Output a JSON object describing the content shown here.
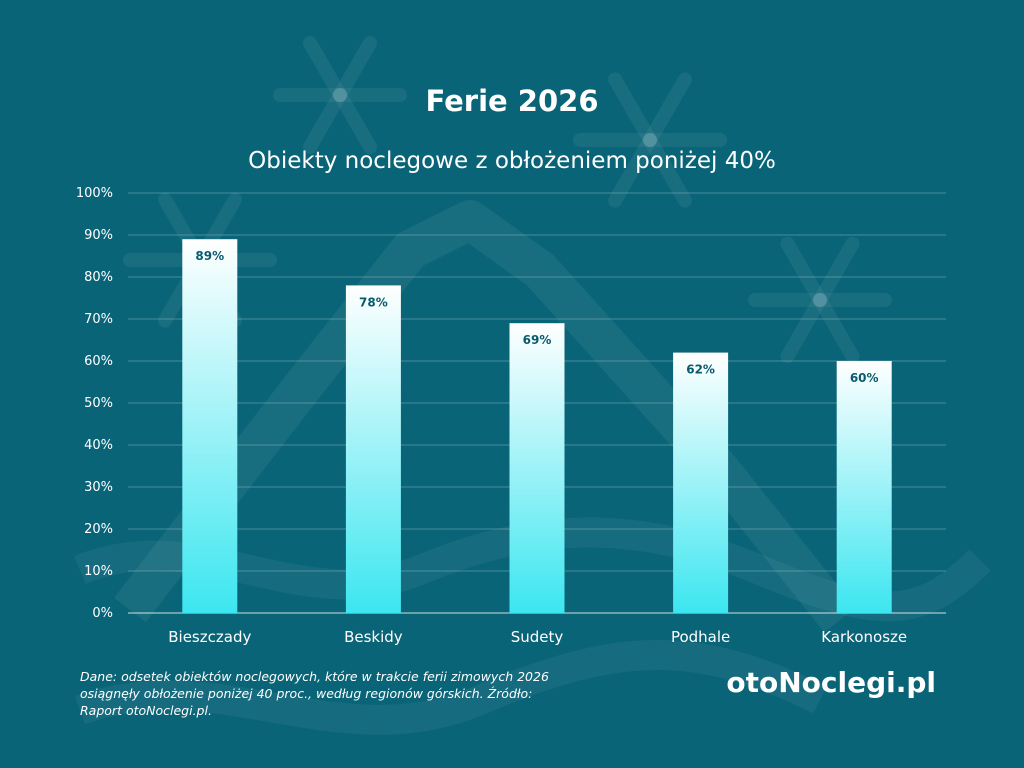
{
  "colors": {
    "background": "#0a6478",
    "bar_top": "#ffffff",
    "bar_bottom": "#3ce6f0",
    "text": "#ffffff",
    "value_label": "#0a5a6e"
  },
  "chart_data": {
    "type": "bar",
    "title": "Ferie 2026",
    "subtitle": "Obiekty noclegowe z obłożeniem poniżej 40%",
    "categories": [
      "Bieszczady",
      "Beskidy",
      "Sudety",
      "Podhale",
      "Karkonosze"
    ],
    "values": [
      89,
      78,
      69,
      62,
      60
    ],
    "value_labels": [
      "89%",
      "78%",
      "69%",
      "62%",
      "60%"
    ],
    "ylim": [
      0,
      100
    ],
    "yticks": [
      "0%",
      "10%",
      "20%",
      "30%",
      "40%",
      "50%",
      "60%",
      "70%",
      "80%",
      "90%",
      "100%"
    ],
    "grid": true,
    "legend": "none"
  },
  "footer": {
    "note": "Dane: odsetek obiektów noclegowych, które w trakcie ferii zimowych 2026 osiągnęły obłożenie poniżej 40 proc., według regionów górskich. Źródło: Raport otoNoclegi.pl.",
    "brand": "otoNoclegi.pl"
  }
}
